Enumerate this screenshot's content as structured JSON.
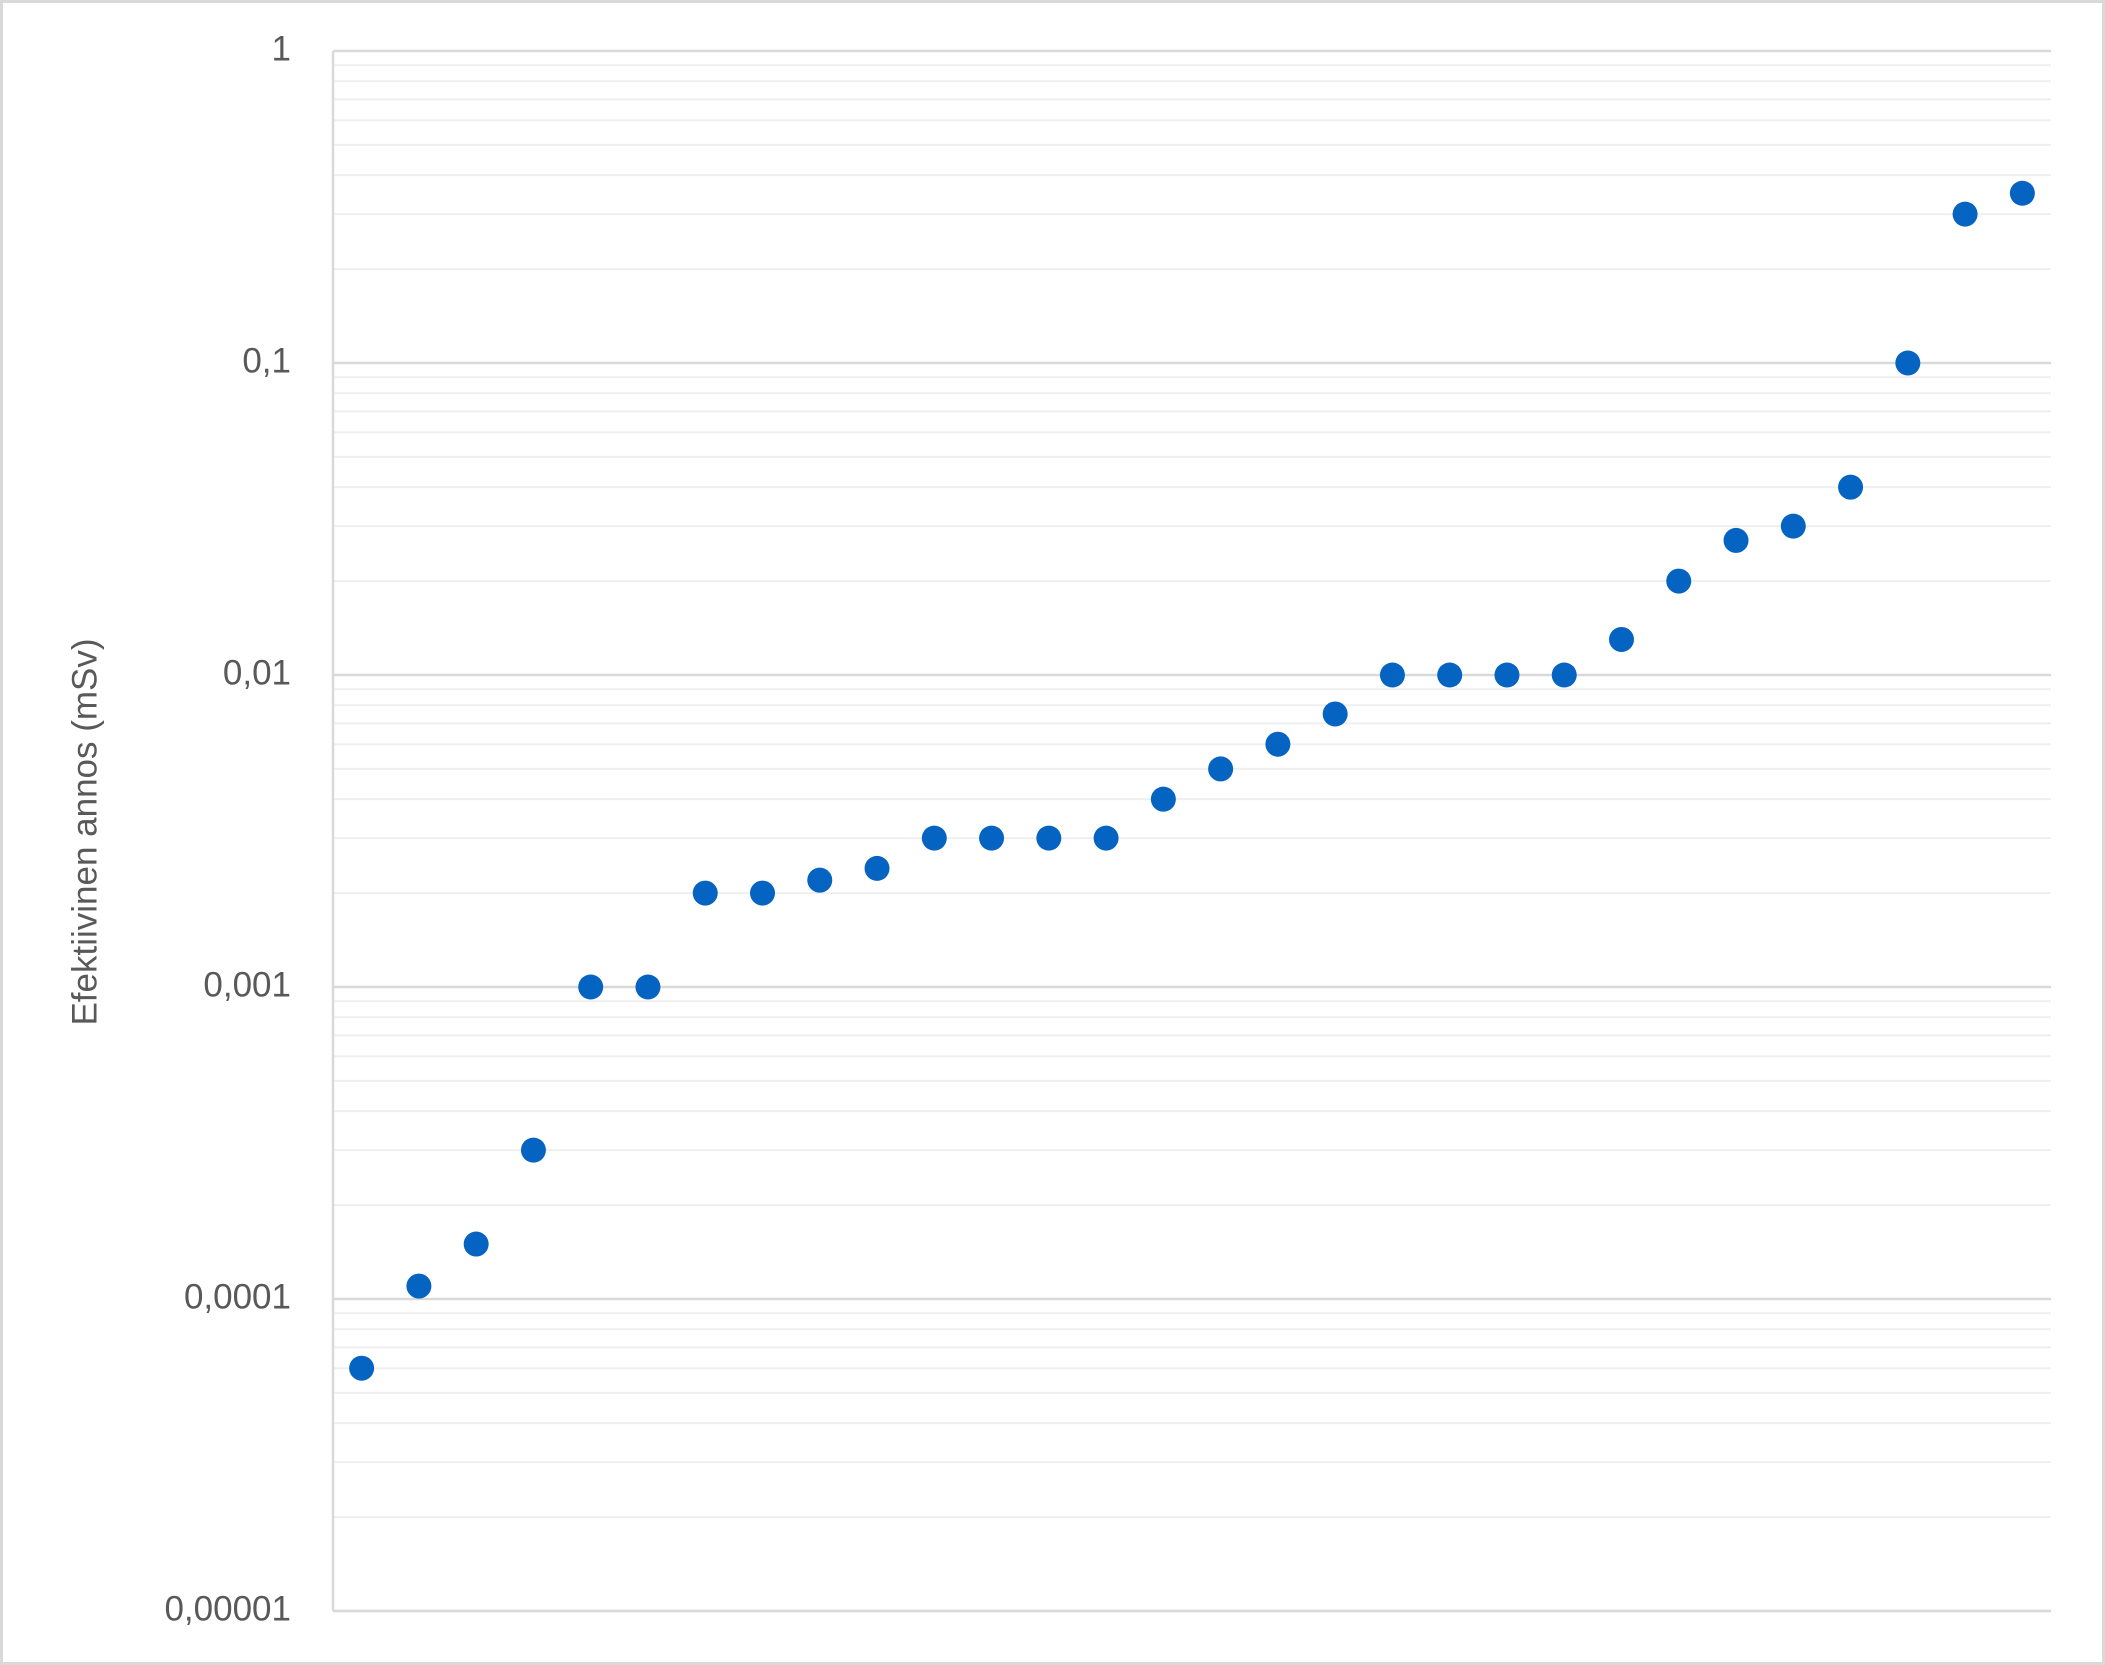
{
  "chart_data": {
    "type": "scatter",
    "y_label": "Efektiivinen annos (mSv)",
    "categories": [
      null,
      null,
      null,
      null,
      null,
      null,
      null,
      null,
      null,
      null,
      null,
      null,
      null,
      null,
      null,
      null,
      null,
      null,
      null,
      null,
      null,
      null,
      null,
      null,
      null,
      null,
      null,
      null,
      null,
      null
    ],
    "values": [
      6e-05,
      0.00011,
      0.00015,
      0.0003,
      0.001,
      0.001,
      0.002,
      0.002,
      0.0022,
      0.0024,
      0.003,
      0.003,
      0.003,
      0.003,
      0.004,
      0.005,
      0.006,
      0.0075,
      0.01,
      0.01,
      0.01,
      0.01,
      0.013,
      0.02,
      0.027,
      0.03,
      0.04,
      0.1,
      0.3,
      0.35
    ],
    "color": "#0563c1",
    "log_scale": true,
    "ylim": [
      1e-05,
      1
    ],
    "yticks": [
      {
        "value": 1e-05,
        "label": "0,00001"
      },
      {
        "value": 0.0001,
        "label": "0,0001"
      },
      {
        "value": 0.001,
        "label": "0,001"
      },
      {
        "value": 0.01,
        "label": "0,01"
      },
      {
        "value": 0.1,
        "label": "0,1"
      },
      1
    ],
    "grid": true,
    "minor_grid": true
  }
}
